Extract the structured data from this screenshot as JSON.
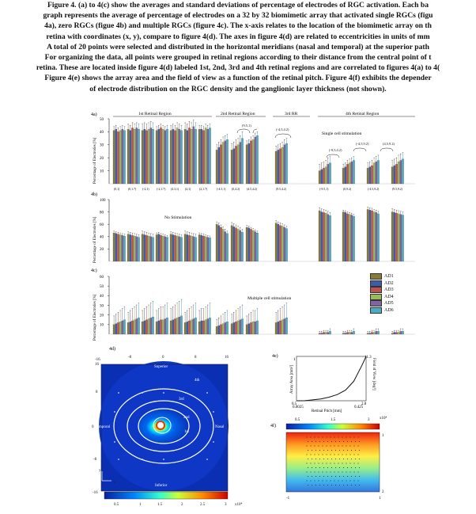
{
  "caption": {
    "lines": [
      "Figure 4. (a) to 4(c) show the averages and standard deviations of percentage of electrodes of RGC activation. Each ba",
      "graph represents the average of percentage of electrodes on a 32 by 32 biomimetic array that activated single RGCs (figu",
      "4a), zero RGCs (figue 4b) and multiple RGCs (figure 4c). The x-axis relates to the location of the biomimetic array on th",
      "retina with coordinates (x, y), compare to figure 4(d). The axes in figure 4(d) are related to eccentricities in units of mm",
      "A total of 20 points were selected and distributed in the horizontal meridians (nasal and temporal) at the superior path",
      "For organizing the data, all points were grouped in retinal regions according to their distance from the central point of t",
      "retina. These are located inside figure 4(d) labeled 1st, 2nd, 3rd and 4th retinal regions and are correlated to figures 4(a) to 4(",
      "Figure 4(e) shows the array area and the field of view as a function of the retinal pitch. Figure 4(f) exhibits the depender",
      "of electrode distribution on the RGC density and the ganglionic layer thickness (not shown)."
    ]
  },
  "panels": {
    "a_label": "4a)",
    "b_label": "4b)",
    "c_label": "4c)",
    "d_label": "4d)",
    "e_label": "4e)",
    "f_label": "4f)",
    "region_1": "1st Retinal Region",
    "region_2": "2nd Retinal Region",
    "region_3": "3rd RR",
    "region_4": "4th Retinal Region",
    "ylabel": "Percentage of Electrodes [%]",
    "note_a": "Single cell stimulation",
    "note_b": "No Stimulation",
    "note_c": "Multiple cell stimulation"
  },
  "chart_data": [
    {
      "type": "bar",
      "panel": "4a",
      "ylim": [
        0,
        50
      ],
      "yticks": [
        10,
        20,
        30,
        40,
        50
      ],
      "groups": [
        "(0,1)",
        "(0,1.7)",
        "(-2,1)",
        "(-2,1.7)",
        "(4.3,1)",
        "(2,1)",
        "(2,1.7)",
        "(-4.5,1)",
        "(0,4.2)",
        "(4.5,4.2)",
        "(9.5,4.2)",
        "(-9.5,1)",
        "(0,9.2)",
        "(-4.5,9.2)",
        "(9.5,9.2)"
      ],
      "annotations": [
        "(9,5,1)",
        "(-4,5,4.2)",
        "(-9,5,4.2)",
        "(-4,5,9.2)",
        "(4,5,9.2)"
      ],
      "series": [
        {
          "name": "AD1",
          "values": [
            41,
            42,
            41,
            41,
            41,
            42,
            42,
            26,
            26,
            30,
            25,
            10,
            12,
            12,
            13
          ]
        },
        {
          "name": "AD2",
          "values": [
            42,
            41,
            42,
            42,
            42,
            41,
            42,
            28,
            27,
            31,
            26,
            11,
            13,
            13,
            14
          ]
        },
        {
          "name": "AD3",
          "values": [
            40,
            43,
            41,
            43,
            41,
            43,
            41,
            30,
            29,
            33,
            27,
            12,
            15,
            14,
            15
          ]
        },
        {
          "name": "AD4",
          "values": [
            41,
            42,
            42,
            42,
            43,
            42,
            43,
            32,
            30,
            34,
            28,
            13,
            16,
            16,
            17
          ]
        },
        {
          "name": "AD5",
          "values": [
            42,
            43,
            43,
            41,
            42,
            44,
            42,
            33,
            32,
            36,
            30,
            15,
            17,
            17,
            18
          ]
        },
        {
          "name": "AD6",
          "values": [
            41,
            42,
            42,
            42,
            41,
            42,
            43,
            34,
            35,
            37,
            31,
            16,
            18,
            18,
            19
          ]
        }
      ]
    },
    {
      "type": "bar",
      "panel": "4b",
      "ylim": [
        0,
        100
      ],
      "yticks": [
        20,
        40,
        60,
        80,
        100
      ],
      "series": [
        {
          "name": "AD1",
          "values": [
            46,
            44,
            44,
            43,
            44,
            44,
            43,
            60,
            58,
            55,
            62,
            82,
            80,
            84,
            80
          ]
        },
        {
          "name": "AD2",
          "values": [
            45,
            43,
            43,
            44,
            43,
            43,
            42,
            58,
            56,
            54,
            60,
            80,
            79,
            83,
            79
          ]
        },
        {
          "name": "AD3",
          "values": [
            44,
            42,
            42,
            42,
            42,
            42,
            41,
            55,
            54,
            52,
            58,
            79,
            77,
            82,
            78
          ]
        },
        {
          "name": "AD4",
          "values": [
            43,
            41,
            41,
            41,
            41,
            41,
            40,
            52,
            52,
            50,
            57,
            78,
            76,
            80,
            77
          ]
        },
        {
          "name": "AD5",
          "values": [
            42,
            40,
            40,
            40,
            40,
            40,
            39,
            48,
            50,
            48,
            55,
            76,
            75,
            79,
            76
          ]
        },
        {
          "name": "AD6",
          "values": [
            41,
            39,
            39,
            39,
            39,
            39,
            38,
            45,
            47,
            46,
            53,
            74,
            73,
            77,
            75
          ]
        }
      ]
    },
    {
      "type": "bar",
      "panel": "4c",
      "ylim": [
        0,
        60
      ],
      "yticks": [
        10,
        20,
        30,
        40,
        50,
        60
      ],
      "series": [
        {
          "name": "AD1",
          "values": [
            10,
            12,
            13,
            13,
            14,
            12,
            13,
            8,
            11,
            10,
            12,
            1,
            1,
            1,
            1
          ]
        },
        {
          "name": "AD2",
          "values": [
            11,
            13,
            14,
            14,
            15,
            13,
            14,
            9,
            12,
            11,
            13,
            1,
            1,
            1,
            2
          ]
        },
        {
          "name": "AD3",
          "values": [
            12,
            14,
            15,
            15,
            16,
            14,
            14,
            10,
            13,
            12,
            14,
            2,
            2,
            2,
            2
          ]
        },
        {
          "name": "AD4",
          "values": [
            13,
            15,
            16,
            15,
            17,
            15,
            15,
            11,
            14,
            13,
            15,
            2,
            2,
            2,
            2
          ]
        },
        {
          "name": "AD5",
          "values": [
            14,
            16,
            17,
            16,
            18,
            16,
            16,
            12,
            15,
            13,
            16,
            2,
            2,
            3,
            3
          ]
        },
        {
          "name": "AD6",
          "values": [
            15,
            17,
            18,
            17,
            19,
            17,
            17,
            13,
            16,
            14,
            17,
            3,
            3,
            3,
            3
          ]
        }
      ]
    },
    {
      "type": "line",
      "panel": "4e",
      "xlabel": "Retinal Pitch [mm]",
      "ylabel": "Array Area [mm²]",
      "y2label": "Field of View [deg²]",
      "xticks": [
        "0.0025",
        "0.425"
      ],
      "yticks": [
        "0.5",
        "1"
      ],
      "y2ticks": [
        "2.8",
        "11.3"
      ],
      "x": [
        0.0025,
        0.05,
        0.1,
        0.15,
        0.2,
        0.25,
        0.3,
        0.35,
        0.4,
        0.425
      ],
      "values": [
        0.5,
        0.5,
        0.51,
        0.52,
        0.54,
        0.57,
        0.62,
        0.72,
        0.9,
        1
      ]
    }
  ],
  "colors": {
    "AD1": "#8a7a3a",
    "AD2": "#3a5fa8",
    "AD3": "#c0504d",
    "AD4": "#9bbb59",
    "AD5": "#8064a2",
    "AD6": "#4bacc6"
  },
  "legend": [
    "AD1",
    "AD2",
    "AD3",
    "AD4",
    "AD5",
    "AD6"
  ],
  "map_d": {
    "xticks": [
      "-16",
      "-8",
      "0",
      "8",
      "16"
    ],
    "yticks": [
      "16",
      "8",
      "0",
      "-8",
      "-16"
    ],
    "superior": "Superior",
    "inferior": "Inferior",
    "temporal": "Temporal",
    "nasal": "Nasal",
    "rings": [
      "1st",
      "2nd",
      "3rd",
      "4th"
    ],
    "colorbar_ticks": [
      "0.5",
      "1",
      "1.5",
      "2",
      "2.5",
      "3"
    ],
    "colorbar_exp": "x10⁴",
    "axis_x": "x",
    "axis_y": "y"
  },
  "map_f": {
    "top_ticks": [
      "0.5",
      "1.5",
      "3"
    ],
    "exp": "x10⁴",
    "right_ticks": [
      "1",
      "2"
    ],
    "left_tick": "-1",
    "bottom_tick": "1"
  }
}
